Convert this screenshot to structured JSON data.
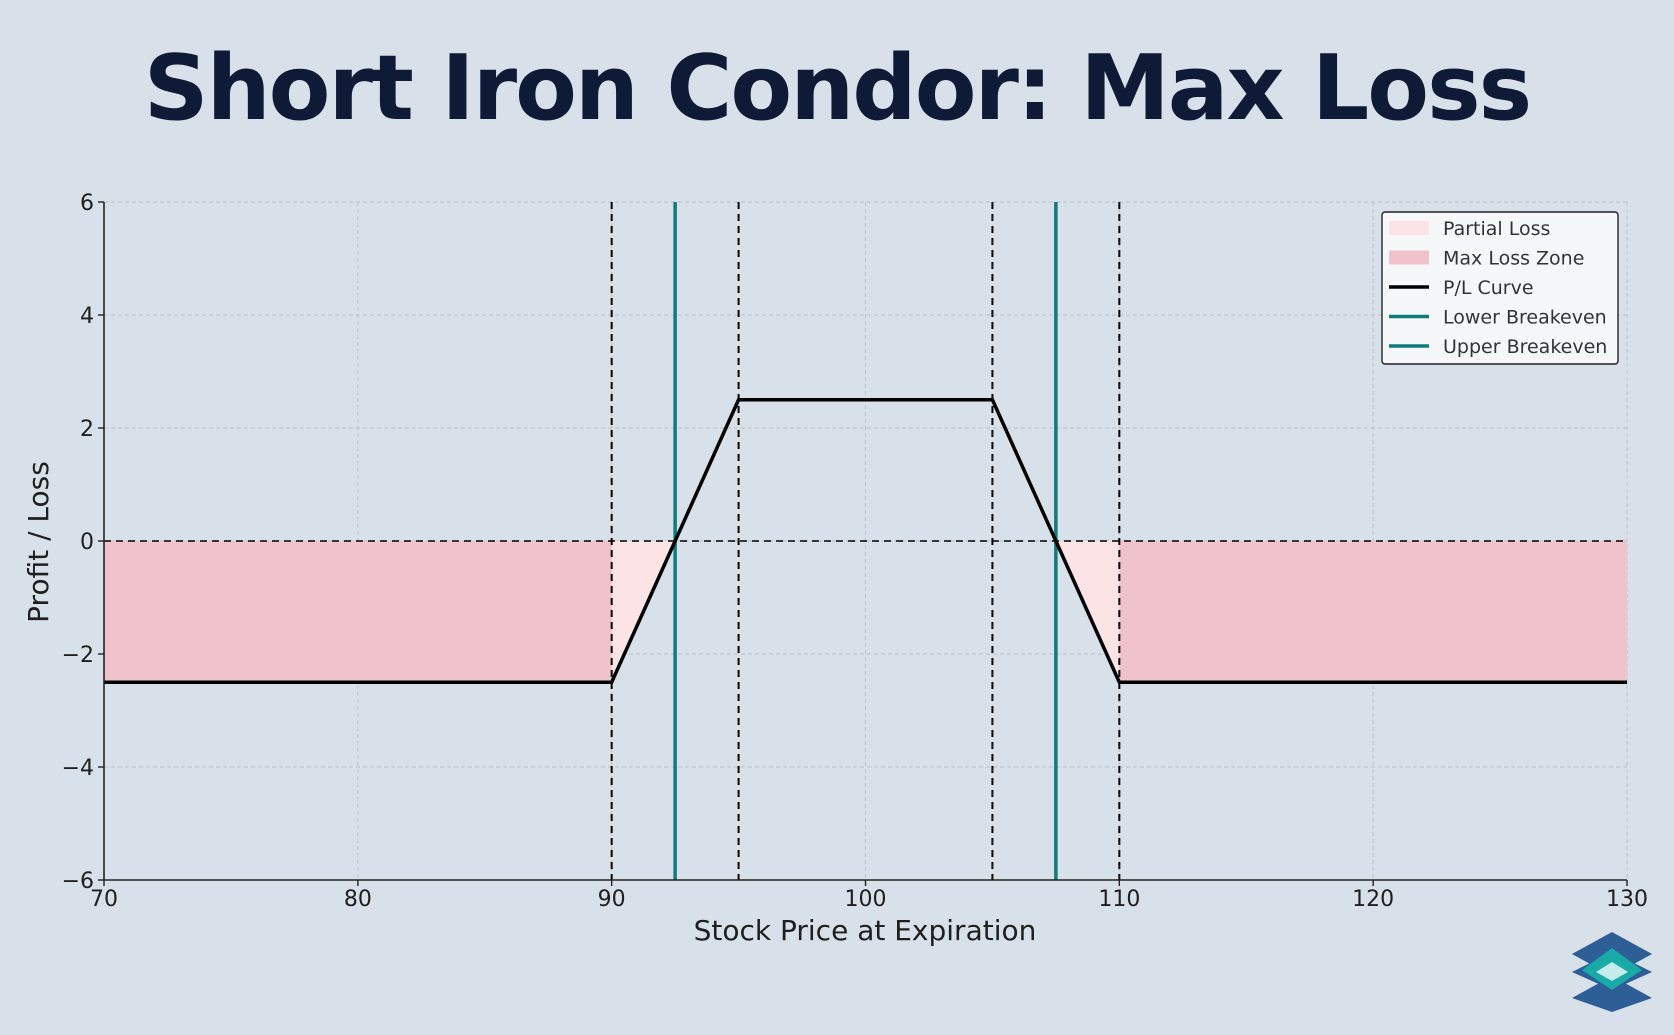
{
  "chart_data": {
    "type": "line",
    "title": "Short Iron Condor: Max Loss",
    "xlabel": "Stock Price at Expiration",
    "ylabel": "Profit / Loss",
    "xlim": [
      70,
      130
    ],
    "ylim": [
      -6,
      6
    ],
    "xticks": [
      70,
      80,
      90,
      100,
      110,
      120,
      130
    ],
    "yticks": [
      -6,
      -4,
      -2,
      0,
      2,
      4,
      6
    ],
    "grid": true,
    "legend_position": "top-right",
    "series": [
      {
        "name": "P/L Curve",
        "color": "#000000",
        "x": [
          70,
          90,
          95,
          105,
          110,
          130
        ],
        "y": [
          -2.5,
          -2.5,
          2.5,
          2.5,
          -2.5,
          -2.5
        ]
      }
    ],
    "reference_lines": [
      {
        "name": "Lower Breakeven",
        "x": 92.5,
        "color": "#0f7b7b"
      },
      {
        "name": "Upper Breakeven",
        "x": 107.5,
        "color": "#0f7b7b"
      }
    ],
    "strike_lines": [
      90,
      95,
      105,
      110
    ],
    "zero_line": 0,
    "fills": [
      {
        "name": "Partial Loss",
        "color": "#fbe3e6",
        "x": [
          90,
          92.5,
          107.5,
          110
        ]
      },
      {
        "name": "Max Loss Zone",
        "color": "#f0c3cc",
        "x": [
          70,
          90,
          110,
          130
        ]
      }
    ]
  },
  "logo": {
    "icon": "stacked-layers-logo-icon",
    "colors": [
      "#2d5f96",
      "#19aaa8",
      "#c5ebeb"
    ]
  }
}
